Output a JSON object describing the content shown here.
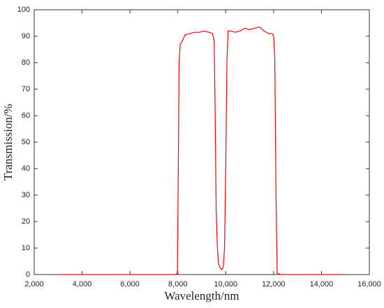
{
  "chart_data": {
    "type": "line",
    "x_label": "Wavelength/nm",
    "y_label": "Transmission/%",
    "x": [
      3000,
      4000,
      5000,
      6000,
      7000,
      7900,
      7980,
      8020,
      8050,
      8100,
      8200,
      8300,
      8500,
      8700,
      8900,
      9100,
      9300,
      9450,
      9520,
      9560,
      9600,
      9650,
      9700,
      9800,
      9850,
      9900,
      9950,
      10000,
      10050,
      10100,
      10200,
      10400,
      10600,
      10800,
      11000,
      11200,
      11400,
      11600,
      11800,
      11950,
      12000,
      12050,
      12100,
      12150,
      12300,
      13000,
      14000,
      14900
    ],
    "series": [
      {
        "color": "#ff0000",
        "values": [
          0,
          0,
          0,
          0,
          0,
          0,
          0.5,
          40,
          80,
          87,
          88.5,
          90.5,
          91,
          91.5,
          91.5,
          92,
          91.5,
          91,
          88,
          60,
          25,
          10,
          4,
          2,
          2,
          3,
          10,
          40,
          80,
          92,
          92,
          91.5,
          92,
          93,
          92.5,
          93,
          93.5,
          92,
          91,
          91,
          90,
          82,
          30,
          0.5,
          0,
          0,
          0,
          0
        ]
      }
    ],
    "xlim": [
      2000,
      16000
    ],
    "xticks": [
      {
        "value": 2000,
        "label": "2,000"
      },
      {
        "value": 4000,
        "label": "4,000"
      },
      {
        "value": 6000,
        "label": "6,000"
      },
      {
        "value": 8000,
        "label": "8,000"
      },
      {
        "value": 10000,
        "label": "10,000"
      },
      {
        "value": 12000,
        "label": "12,000"
      },
      {
        "value": 14000,
        "label": "14,000"
      },
      {
        "value": 16000,
        "label": "16,000"
      }
    ],
    "ylim": [
      0,
      100
    ],
    "yticks": [
      0,
      10,
      20,
      30,
      40,
      50,
      60,
      70,
      80,
      90,
      100
    ],
    "grid": false
  }
}
